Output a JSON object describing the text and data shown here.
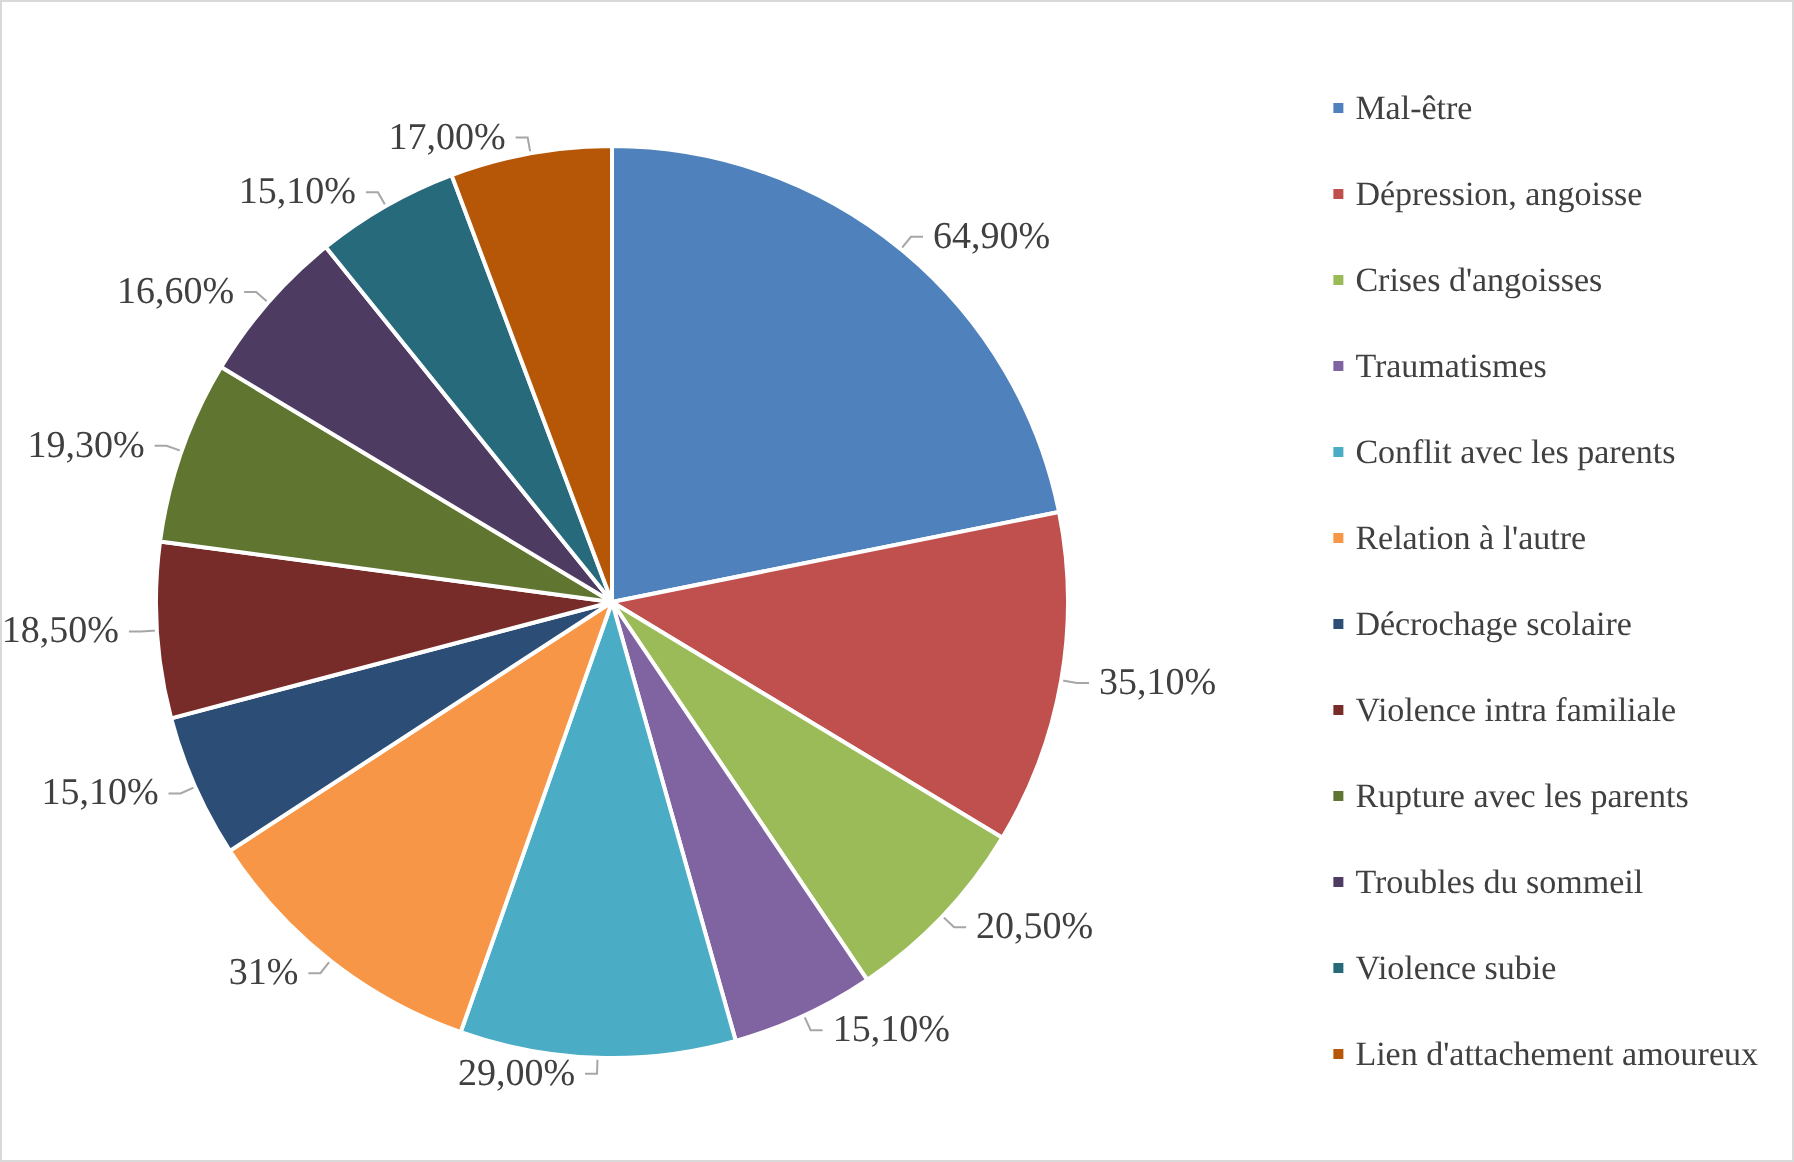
{
  "chart_data": {
    "type": "pie",
    "categories": [
      "Mal-être",
      "Dépression, angoisse",
      "Crises d'angoisses",
      "Traumatismes",
      "Conflit avec les parents",
      "Relation à l'autre",
      "Décrochage scolaire",
      "Violence intra familiale",
      "Rupture avec les parents",
      "Troubles du sommeil",
      "Violence subie",
      "Lien d'attachement amoureux"
    ],
    "values": [
      64.9,
      35.1,
      20.5,
      15.1,
      29.0,
      31,
      15.1,
      18.5,
      19.3,
      16.6,
      15.1,
      17.0
    ],
    "value_labels": [
      "64,90%",
      "35,10%",
      "20,50%",
      "15,10%",
      "29,00%",
      "31%",
      "15,10%",
      "18,50%",
      "19,30%",
      "16,60%",
      "15,10%",
      "17,00%"
    ],
    "colors": [
      "#4f81bd",
      "#c0504d",
      "#9bbb59",
      "#8064a2",
      "#4bacc6",
      "#f79646",
      "#2c4d75",
      "#772c2a",
      "#5f7530",
      "#4d3b62",
      "#276a7c",
      "#b65708"
    ],
    "legend": "right"
  }
}
